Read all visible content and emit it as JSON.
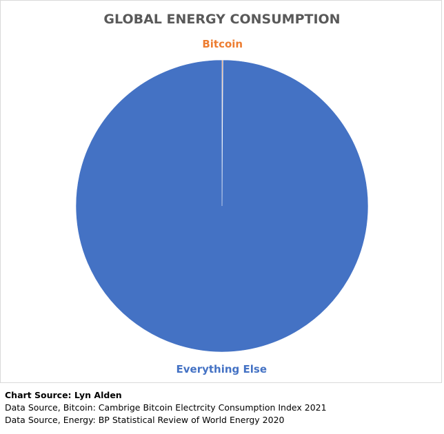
{
  "chart_data": {
    "type": "pie",
    "title": "GLOBAL ENERGY CONSUMPTION",
    "slices": [
      {
        "label": "Bitcoin",
        "value": 0.1,
        "color": "#ED7D31"
      },
      {
        "label": "Everything Else",
        "value": 99.9,
        "color": "#4472C4"
      }
    ],
    "title_color": "#595959"
  },
  "notes": {
    "chart_source": "Chart Source: Lyn Alden",
    "data_source_bitcoin": "Data Source, Bitcoin: Cambrige Bitcoin Electrcity Consumption Index 2021",
    "data_source_energy": "Data Source, Energy: BP Statistical Review of World Energy 2020"
  }
}
